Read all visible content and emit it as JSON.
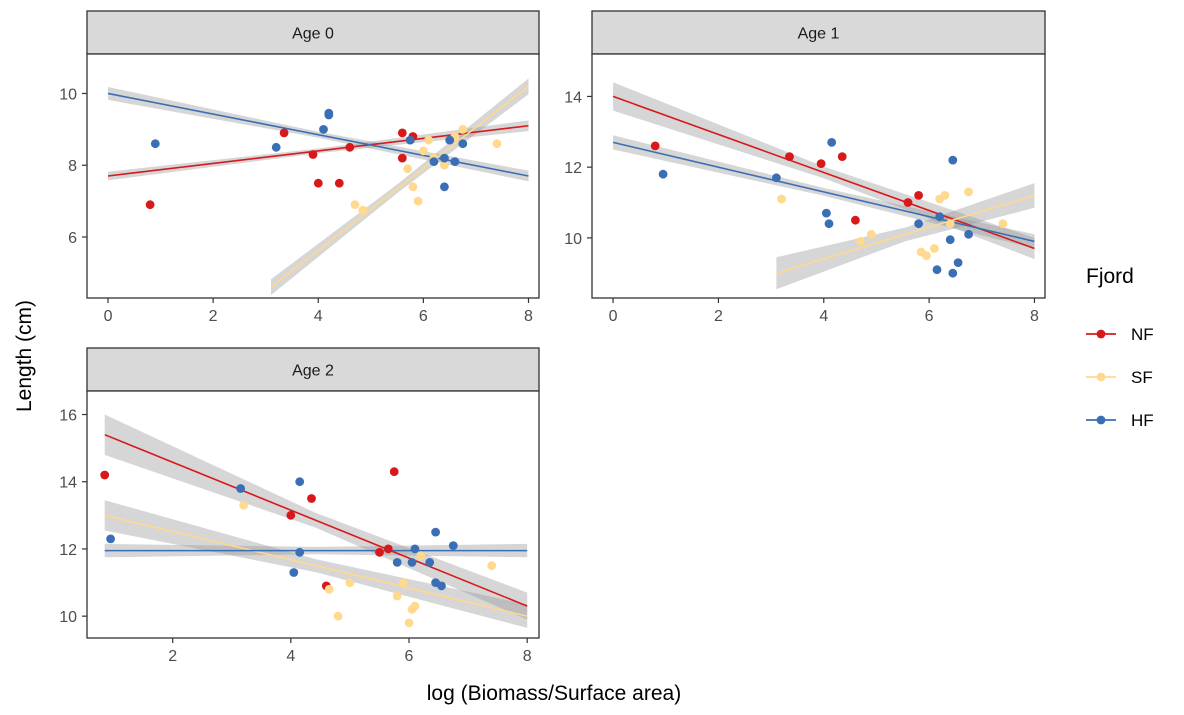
{
  "figure": {
    "xlabel": "log (Biomass/Surface area)",
    "ylabel": "Length (cm)",
    "legend": {
      "title": "Fjord",
      "position": "right",
      "entries": [
        {
          "name": "NF",
          "color": "#d7191c"
        },
        {
          "name": "SF",
          "color": "#fed98e"
        },
        {
          "name": "HF",
          "color": "#3a6fb5"
        }
      ]
    }
  },
  "chart_data": [
    {
      "type": "scatter",
      "title": "Age 0",
      "xlim": [
        -0.4,
        8.2
      ],
      "ylim": [
        4.3,
        11.1
      ],
      "xticks": [
        0,
        2,
        4,
        6,
        8
      ],
      "yticks": [
        6,
        8,
        10
      ],
      "series": [
        {
          "name": "NF",
          "color": "#d7191c",
          "points": [
            [
              0.8,
              6.9
            ],
            [
              3.35,
              8.9
            ],
            [
              3.9,
              8.3
            ],
            [
              4.0,
              7.5
            ],
            [
              4.4,
              7.5
            ],
            [
              4.6,
              8.5
            ],
            [
              5.6,
              8.2
            ],
            [
              5.6,
              8.9
            ],
            [
              5.8,
              8.8
            ]
          ],
          "fit": {
            "x": [
              0,
              8
            ],
            "y": [
              7.7,
              9.1
            ],
            "ci": [
              0.12,
              0.15
            ]
          }
        },
        {
          "name": "SF",
          "color": "#fed98e",
          "points": [
            [
              4.7,
              6.9
            ],
            [
              4.85,
              6.75
            ],
            [
              5.7,
              7.9
            ],
            [
              5.8,
              7.4
            ],
            [
              5.9,
              7.0
            ],
            [
              6.0,
              8.4
            ],
            [
              6.1,
              8.7
            ],
            [
              6.2,
              8.2
            ],
            [
              6.4,
              8.0
            ],
            [
              6.6,
              8.8
            ],
            [
              6.75,
              9.0
            ],
            [
              7.4,
              8.6
            ]
          ],
          "fit": {
            "x": [
              3.1,
              8
            ],
            "y": [
              4.6,
              10.2
            ],
            "ci": [
              0.22,
              0.22
            ]
          }
        },
        {
          "name": "HF",
          "color": "#3a6fb5",
          "points": [
            [
              0.9,
              8.6
            ],
            [
              3.2,
              8.5
            ],
            [
              4.1,
              9.0
            ],
            [
              4.2,
              9.4
            ],
            [
              4.2,
              9.45
            ],
            [
              5.75,
              8.7
            ],
            [
              6.2,
              8.1
            ],
            [
              6.4,
              8.2
            ],
            [
              6.4,
              7.4
            ],
            [
              6.5,
              8.7
            ],
            [
              6.6,
              8.1
            ],
            [
              6.75,
              8.6
            ]
          ],
          "fit": {
            "x": [
              0,
              8
            ],
            "y": [
              10.0,
              7.7
            ],
            "ci": [
              0.18,
              0.15
            ]
          }
        }
      ]
    },
    {
      "type": "scatter",
      "title": "Age 1",
      "xlim": [
        -0.4,
        8.2
      ],
      "ylim": [
        8.3,
        15.2
      ],
      "xticks": [
        0,
        2,
        4,
        6,
        8
      ],
      "yticks": [
        10,
        12,
        14
      ],
      "series": [
        {
          "name": "NF",
          "color": "#d7191c",
          "points": [
            [
              0.8,
              12.6
            ],
            [
              3.35,
              12.3
            ],
            [
              3.95,
              12.1
            ],
            [
              4.35,
              12.3
            ],
            [
              4.6,
              10.5
            ],
            [
              5.6,
              11.0
            ],
            [
              5.8,
              11.2
            ]
          ],
          "fit": {
            "x": [
              0,
              8
            ],
            "y": [
              14.0,
              9.7
            ],
            "ci": [
              0.4,
              0.3
            ]
          }
        },
        {
          "name": "SF",
          "color": "#fed98e",
          "points": [
            [
              3.2,
              11.1
            ],
            [
              4.7,
              9.9
            ],
            [
              4.9,
              10.1
            ],
            [
              5.85,
              9.6
            ],
            [
              5.95,
              9.5
            ],
            [
              6.1,
              9.7
            ],
            [
              6.2,
              11.1
            ],
            [
              6.3,
              11.2
            ],
            [
              6.4,
              10.4
            ],
            [
              6.75,
              11.3
            ],
            [
              7.4,
              10.4
            ]
          ],
          "fit": {
            "x": [
              3.1,
              8
            ],
            "y": [
              9.0,
              11.2
            ],
            "ci": [
              0.45,
              0.35
            ]
          }
        },
        {
          "name": "HF",
          "color": "#3a6fb5",
          "points": [
            [
              0.95,
              11.8
            ],
            [
              3.1,
              11.7
            ],
            [
              4.05,
              10.7
            ],
            [
              4.1,
              10.4
            ],
            [
              4.15,
              12.7
            ],
            [
              5.8,
              10.4
            ],
            [
              6.15,
              9.1
            ],
            [
              6.2,
              10.6
            ],
            [
              6.4,
              9.95
            ],
            [
              6.45,
              9.0
            ],
            [
              6.45,
              12.2
            ],
            [
              6.55,
              9.3
            ],
            [
              6.75,
              10.1
            ]
          ],
          "fit": {
            "x": [
              0,
              8
            ],
            "y": [
              12.7,
              9.9
            ],
            "ci": [
              0.2,
              0.2
            ]
          }
        }
      ]
    },
    {
      "type": "scatter",
      "title": "Age 2",
      "xlim": [
        0.55,
        8.2
      ],
      "ylim": [
        9.35,
        16.7
      ],
      "xticks": [
        2,
        4,
        6,
        8
      ],
      "yticks": [
        10,
        12,
        14,
        16
      ],
      "series": [
        {
          "name": "NF",
          "color": "#d7191c",
          "points": [
            [
              0.85,
              14.2
            ],
            [
              4.0,
              13.0
            ],
            [
              4.35,
              13.5
            ],
            [
              4.6,
              10.9
            ],
            [
              5.5,
              11.9
            ],
            [
              5.65,
              12.0
            ],
            [
              5.75,
              14.3
            ]
          ],
          "fit": {
            "x": [
              0.85,
              8
            ],
            "y": [
              15.4,
              10.3
            ],
            "ci": [
              0.6,
              0.4
            ]
          }
        },
        {
          "name": "SF",
          "color": "#fed98e",
          "points": [
            [
              3.2,
              13.3
            ],
            [
              4.65,
              10.8
            ],
            [
              4.8,
              10.0
            ],
            [
              5.0,
              11.0
            ],
            [
              5.8,
              10.6
            ],
            [
              5.9,
              11.0
            ],
            [
              6.0,
              9.8
            ],
            [
              6.05,
              10.2
            ],
            [
              6.1,
              10.3
            ],
            [
              6.2,
              11.8
            ],
            [
              7.4,
              11.5
            ]
          ],
          "fit": {
            "x": [
              0.85,
              8
            ],
            "y": [
              13.0,
              10.0
            ],
            "ci": [
              0.45,
              0.35
            ]
          }
        },
        {
          "name": "HF",
          "color": "#3a6fb5",
          "points": [
            [
              0.95,
              12.3
            ],
            [
              3.15,
              13.8
            ],
            [
              4.05,
              11.3
            ],
            [
              4.15,
              11.9
            ],
            [
              4.15,
              14.0
            ],
            [
              5.8,
              11.6
            ],
            [
              6.05,
              11.6
            ],
            [
              6.1,
              12.0
            ],
            [
              6.35,
              11.6
            ],
            [
              6.45,
              11.0
            ],
            [
              6.45,
              12.5
            ],
            [
              6.55,
              10.9
            ],
            [
              6.75,
              12.1
            ]
          ],
          "fit": {
            "x": [
              0.85,
              8
            ],
            "y": [
              11.95,
              11.95
            ],
            "ci": [
              0.2,
              0.2
            ]
          }
        }
      ]
    }
  ]
}
